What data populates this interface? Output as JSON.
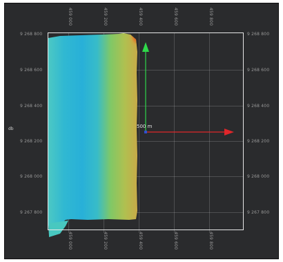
{
  "viewport": {
    "dtm_label": "db",
    "scale_label": "500 m",
    "top_labels": [
      "459 000",
      "459 200",
      "459 400",
      "459 600",
      "459 800"
    ],
    "bottom_labels": [
      "459 000",
      "459 200",
      "459 400",
      "459 600",
      "459 800"
    ],
    "left_labels": [
      "9 268 800",
      "9 268 600",
      "9 268 400",
      "9 268 200",
      "9 268 000",
      "9 267 800"
    ],
    "right_labels": [
      "9 268 800",
      "9 268 600",
      "9 268 400",
      "9 268 200",
      "9 268 000",
      "9 267 800"
    ],
    "colors": {
      "background": "#2a2b2d",
      "x_axis": "#e0262a",
      "y_axis": "#2fd84a",
      "grid": "#d2d2d2",
      "bbox": "#e8e8e8"
    },
    "elevation_ramp": [
      "#40c8c8",
      "#2ab0d6",
      "#3cc0c0",
      "#8cc860",
      "#c8a848",
      "#e04a20"
    ]
  }
}
